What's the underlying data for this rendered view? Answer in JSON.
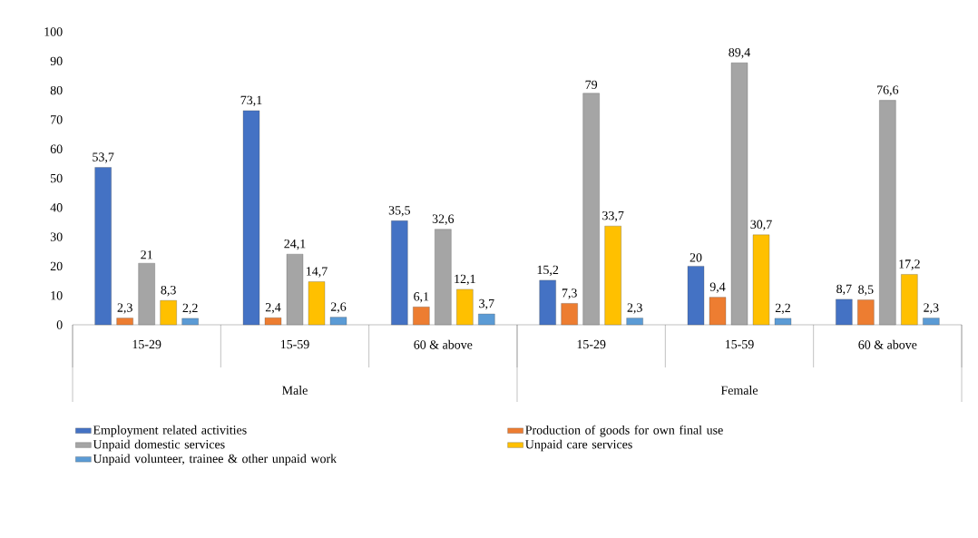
{
  "chart_data": {
    "type": "bar",
    "categories": [
      "15-29",
      "15-59",
      "60 & above",
      "15-29",
      "15-59",
      "60 & above"
    ],
    "annotations": [
      "Male",
      "Female"
    ],
    "ylim": [
      0,
      100
    ],
    "yticks": [
      0,
      10,
      20,
      30,
      40,
      50,
      60,
      70,
      80,
      90,
      100
    ],
    "legend": "bottom",
    "series": [
      {
        "name": "Employment related activities",
        "color": "#4472c4",
        "values": [
          53.7,
          73.1,
          35.5,
          15.2,
          20,
          8.7
        ],
        "value_labels": [
          "53,7",
          "73,1",
          "35,5",
          "15,2",
          "20",
          "8,7"
        ]
      },
      {
        "name": "Production of goods for own final use",
        "color": "#ed7d31",
        "values": [
          2.3,
          2.4,
          6.1,
          7.3,
          9.4,
          8.5
        ],
        "value_labels": [
          "2,3",
          "2,4",
          "6,1",
          "7,3",
          "9,4",
          "8,5"
        ]
      },
      {
        "name": "Unpaid domestic services",
        "color": "#a5a5a5",
        "values": [
          21,
          24.1,
          32.6,
          79,
          89.4,
          76.6
        ],
        "value_labels": [
          "21",
          "24,1",
          "32,6",
          "79",
          "89,4",
          "76,6"
        ]
      },
      {
        "name": "Unpaid care services",
        "color": "#ffc000",
        "values": [
          8.3,
          14.7,
          12.1,
          33.7,
          30.7,
          17.2
        ],
        "value_labels": [
          "8,3",
          "14,7",
          "12,1",
          "33,7",
          "30,7",
          "17,2"
        ]
      },
      {
        "name": "Unpaid volunteer, trainee & other unpaid work",
        "color": "#5b9bd5",
        "values": [
          2.2,
          2.6,
          3.7,
          2.3,
          2.2,
          2.3
        ],
        "value_labels": [
          "2,2",
          "2,6",
          "3,7",
          "2,3",
          "2,2",
          "2,3"
        ]
      }
    ]
  }
}
